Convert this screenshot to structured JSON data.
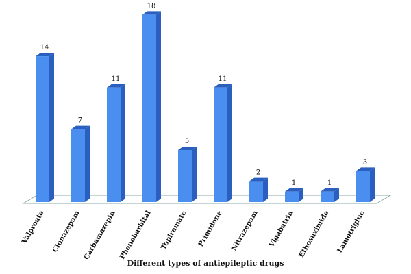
{
  "chart_data": {
    "type": "bar",
    "title": "",
    "xlabel": "Different types of antiepileptic drugs",
    "ylabel": "",
    "categories": [
      "Valproate",
      "Clonazepam",
      "Carbamazepin",
      "Phenobarbital",
      "Topiramate",
      "Primidone",
      "Nitrazepam",
      "Vigabatrin",
      "Ethosuximide",
      "Lamotrigine"
    ],
    "values": [
      14,
      7,
      11,
      18,
      5,
      11,
      2,
      1,
      1,
      3
    ],
    "ylim": [
      0,
      18
    ],
    "grid": false,
    "legend": "none",
    "style": "3d-column",
    "colors": {
      "front": "#4a8fef",
      "side": "#2a5fbf",
      "top": "#2a5fbf",
      "floor_stroke": "#8aaaa8"
    }
  }
}
